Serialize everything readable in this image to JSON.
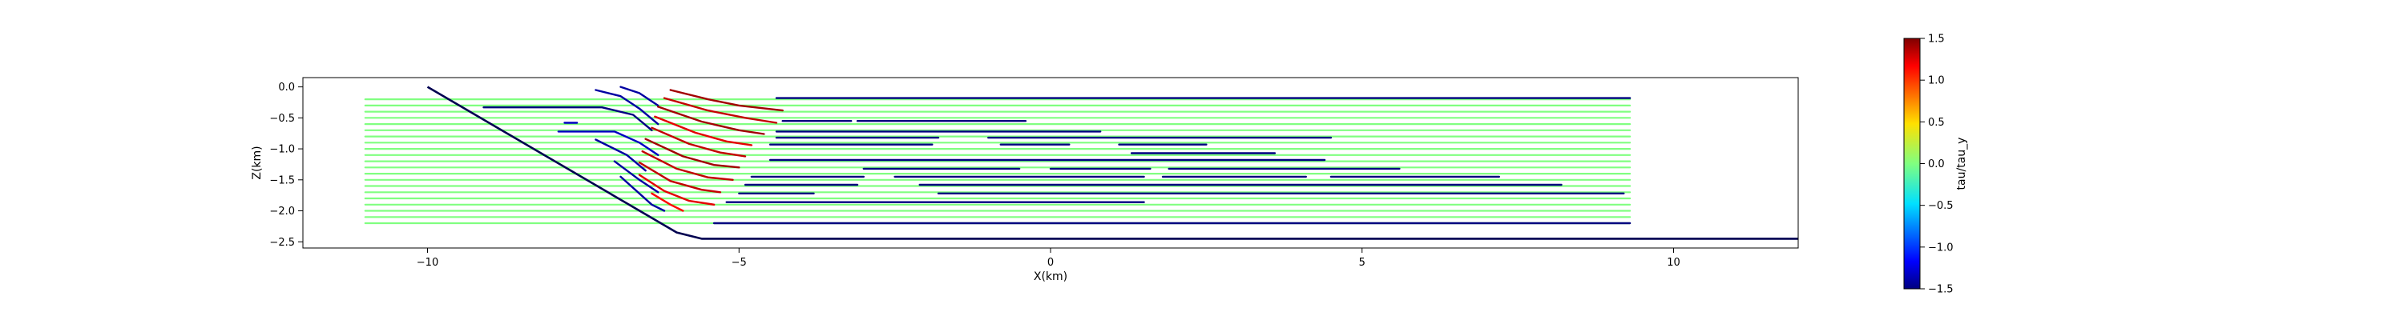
{
  "chart_data": {
    "type": "line",
    "title": "",
    "xlabel": "X(km)",
    "ylabel": "Z(km)",
    "xlim": [
      -12.0,
      12.0
    ],
    "ylim": [
      -2.6,
      0.15
    ],
    "x_ticks": [
      -10,
      -5,
      0,
      5,
      10
    ],
    "y_ticks": [
      0.0,
      -0.5,
      -1.0,
      -1.5,
      -2.0,
      -2.5
    ],
    "x_tick_labels": [
      "−10",
      "−5",
      "0",
      "5",
      "10"
    ],
    "y_tick_labels": [
      "0.0",
      "−0.5",
      "−1.0",
      "−1.5",
      "−2.0",
      "−2.5"
    ],
    "grid": false,
    "colormap": "jet",
    "colorbar": {
      "label": "tau/tau_y",
      "range": [
        -1.5,
        1.5
      ],
      "ticks": [
        1.5,
        1.0,
        0.5,
        0.0,
        -0.5,
        -1.0,
        -1.5
      ],
      "tick_labels": [
        "1.5",
        "1.0",
        "0.5",
        "0.0",
        "−0.5",
        "−1.0",
        "−1.5"
      ]
    },
    "boundary": {
      "name": "",
      "color": "#000050",
      "points": [
        [
          -10.0,
          0.0
        ],
        [
          -6.0,
          -2.35
        ],
        [
          -5.6,
          -2.45
        ],
        [
          12.0,
          -2.45
        ]
      ]
    },
    "background_lines": {
      "color_value": 0.0,
      "x_start": -11.0,
      "x_end": 9.3,
      "z_levels": [
        -0.2,
        -0.3,
        -0.4,
        -0.5,
        -0.6,
        -0.7,
        -0.8,
        -0.9,
        -1.0,
        -1.1,
        -1.2,
        -1.3,
        -1.4,
        -1.5,
        -1.6,
        -1.7,
        -1.8,
        -1.9,
        -2.0,
        -2.1,
        -2.2
      ]
    },
    "series": [
      {
        "color_value": -1.5,
        "points": [
          [
            -4.4,
            -0.18
          ],
          [
            9.3,
            -0.18
          ]
        ]
      },
      {
        "color_value": -1.5,
        "points": [
          [
            -9.1,
            -0.33
          ],
          [
            -7.2,
            -0.33
          ],
          [
            -6.7,
            -0.45
          ],
          [
            -6.4,
            -0.7
          ]
        ]
      },
      {
        "color_value": -1.4,
        "points": [
          [
            -7.3,
            -0.05
          ],
          [
            -6.9,
            -0.15
          ],
          [
            -6.6,
            -0.35
          ],
          [
            -6.3,
            -0.6
          ]
        ]
      },
      {
        "color_value": -1.4,
        "points": [
          [
            -6.9,
            -0.0
          ],
          [
            -6.6,
            -0.1
          ],
          [
            -6.3,
            -0.3
          ]
        ]
      },
      {
        "color_value": -1.3,
        "points": [
          [
            -7.8,
            -0.58
          ],
          [
            -7.6,
            -0.58
          ]
        ]
      },
      {
        "color_value": -1.3,
        "points": [
          [
            -7.9,
            -0.72
          ],
          [
            -7.0,
            -0.72
          ],
          [
            -6.6,
            -0.9
          ],
          [
            -6.3,
            -1.1
          ]
        ]
      },
      {
        "color_value": -1.4,
        "points": [
          [
            -7.3,
            -0.85
          ],
          [
            -6.8,
            -1.1
          ],
          [
            -6.5,
            -1.35
          ]
        ]
      },
      {
        "color_value": -1.4,
        "points": [
          [
            -7.0,
            -1.2
          ],
          [
            -6.6,
            -1.5
          ],
          [
            -6.3,
            -1.7
          ]
        ]
      },
      {
        "color_value": -1.4,
        "points": [
          [
            -6.9,
            -1.45
          ],
          [
            -6.4,
            -1.9
          ],
          [
            -6.2,
            -2.0
          ]
        ]
      },
      {
        "color_value": 1.4,
        "points": [
          [
            -6.1,
            -0.05
          ],
          [
            -5.5,
            -0.2
          ],
          [
            -5.0,
            -0.3
          ],
          [
            -4.3,
            -0.38
          ]
        ]
      },
      {
        "color_value": 1.3,
        "points": [
          [
            -6.2,
            -0.18
          ],
          [
            -5.5,
            -0.38
          ],
          [
            -4.9,
            -0.5
          ],
          [
            -4.4,
            -0.58
          ]
        ]
      },
      {
        "color_value": 1.4,
        "points": [
          [
            -6.3,
            -0.32
          ],
          [
            -5.6,
            -0.56
          ],
          [
            -5.0,
            -0.7
          ],
          [
            -4.6,
            -0.76
          ]
        ]
      },
      {
        "color_value": 1.2,
        "points": [
          [
            -6.35,
            -0.48
          ],
          [
            -5.7,
            -0.74
          ],
          [
            -5.2,
            -0.88
          ],
          [
            -4.8,
            -0.94
          ]
        ]
      },
      {
        "color_value": 1.3,
        "points": [
          [
            -6.4,
            -0.66
          ],
          [
            -5.8,
            -0.92
          ],
          [
            -5.3,
            -1.06
          ],
          [
            -4.9,
            -1.12
          ]
        ]
      },
      {
        "color_value": 1.4,
        "points": [
          [
            -6.5,
            -0.84
          ],
          [
            -5.9,
            -1.12
          ],
          [
            -5.4,
            -1.26
          ],
          [
            -5.0,
            -1.3
          ]
        ]
      },
      {
        "color_value": 1.3,
        "points": [
          [
            -6.55,
            -1.04
          ],
          [
            -6.0,
            -1.32
          ],
          [
            -5.5,
            -1.46
          ],
          [
            -5.1,
            -1.5
          ]
        ]
      },
      {
        "color_value": 1.3,
        "points": [
          [
            -6.6,
            -1.22
          ],
          [
            -6.1,
            -1.52
          ],
          [
            -5.6,
            -1.66
          ],
          [
            -5.3,
            -1.7
          ]
        ]
      },
      {
        "color_value": 1.2,
        "points": [
          [
            -6.6,
            -1.42
          ],
          [
            -6.2,
            -1.68
          ],
          [
            -5.8,
            -1.84
          ],
          [
            -5.4,
            -1.9
          ]
        ]
      },
      {
        "color_value": 1.1,
        "points": [
          [
            -6.4,
            -1.72
          ],
          [
            -6.1,
            -1.9
          ],
          [
            -5.9,
            -2.0
          ]
        ]
      },
      {
        "color_value": -1.5,
        "points": [
          [
            -4.3,
            -0.55
          ],
          [
            -3.2,
            -0.55
          ]
        ]
      },
      {
        "color_value": -1.5,
        "points": [
          [
            -3.1,
            -0.55
          ],
          [
            -0.4,
            -0.55
          ]
        ]
      },
      {
        "color_value": -1.5,
        "points": [
          [
            -4.4,
            -0.72
          ],
          [
            0.8,
            -0.72
          ]
        ]
      },
      {
        "color_value": -1.5,
        "points": [
          [
            -4.4,
            -0.82
          ],
          [
            -1.8,
            -0.82
          ]
        ]
      },
      {
        "color_value": -1.5,
        "points": [
          [
            -1.0,
            -0.82
          ],
          [
            4.5,
            -0.82
          ]
        ]
      },
      {
        "color_value": -1.5,
        "points": [
          [
            -4.5,
            -0.93
          ],
          [
            -1.9,
            -0.93
          ]
        ]
      },
      {
        "color_value": -1.5,
        "points": [
          [
            -0.8,
            -0.93
          ],
          [
            0.3,
            -0.93
          ]
        ]
      },
      {
        "color_value": -1.5,
        "points": [
          [
            1.1,
            -0.93
          ],
          [
            2.5,
            -0.93
          ]
        ]
      },
      {
        "color_value": -1.5,
        "points": [
          [
            1.3,
            -1.07
          ],
          [
            3.6,
            -1.07
          ]
        ]
      },
      {
        "color_value": -1.5,
        "points": [
          [
            -4.5,
            -1.18
          ],
          [
            4.4,
            -1.18
          ]
        ]
      },
      {
        "color_value": -1.5,
        "points": [
          [
            -3.0,
            -1.32
          ],
          [
            -0.5,
            -1.32
          ]
        ]
      },
      {
        "color_value": -1.5,
        "points": [
          [
            0.0,
            -1.32
          ],
          [
            1.6,
            -1.32
          ]
        ]
      },
      {
        "color_value": -1.5,
        "points": [
          [
            1.9,
            -1.32
          ],
          [
            5.6,
            -1.32
          ]
        ]
      },
      {
        "color_value": -1.5,
        "points": [
          [
            -4.8,
            -1.45
          ],
          [
            -3.0,
            -1.45
          ]
        ]
      },
      {
        "color_value": -1.5,
        "points": [
          [
            -2.5,
            -1.45
          ],
          [
            1.5,
            -1.45
          ]
        ]
      },
      {
        "color_value": -1.5,
        "points": [
          [
            1.8,
            -1.45
          ],
          [
            4.1,
            -1.45
          ]
        ]
      },
      {
        "color_value": -1.5,
        "points": [
          [
            4.5,
            -1.45
          ],
          [
            7.2,
            -1.45
          ]
        ]
      },
      {
        "color_value": -1.5,
        "points": [
          [
            -4.9,
            -1.58
          ],
          [
            -3.1,
            -1.58
          ]
        ]
      },
      {
        "color_value": -1.5,
        "points": [
          [
            -2.1,
            -1.58
          ],
          [
            8.2,
            -1.58
          ]
        ]
      },
      {
        "color_value": -1.5,
        "points": [
          [
            -5.0,
            -1.72
          ],
          [
            -3.8,
            -1.72
          ]
        ]
      },
      {
        "color_value": -1.5,
        "points": [
          [
            -1.8,
            -1.72
          ],
          [
            9.2,
            -1.72
          ]
        ]
      },
      {
        "color_value": -1.5,
        "points": [
          [
            -5.2,
            -1.86
          ],
          [
            1.5,
            -1.86
          ]
        ]
      },
      {
        "color_value": -1.5,
        "points": [
          [
            -5.4,
            -2.2
          ],
          [
            9.3,
            -2.2
          ]
        ]
      }
    ]
  }
}
